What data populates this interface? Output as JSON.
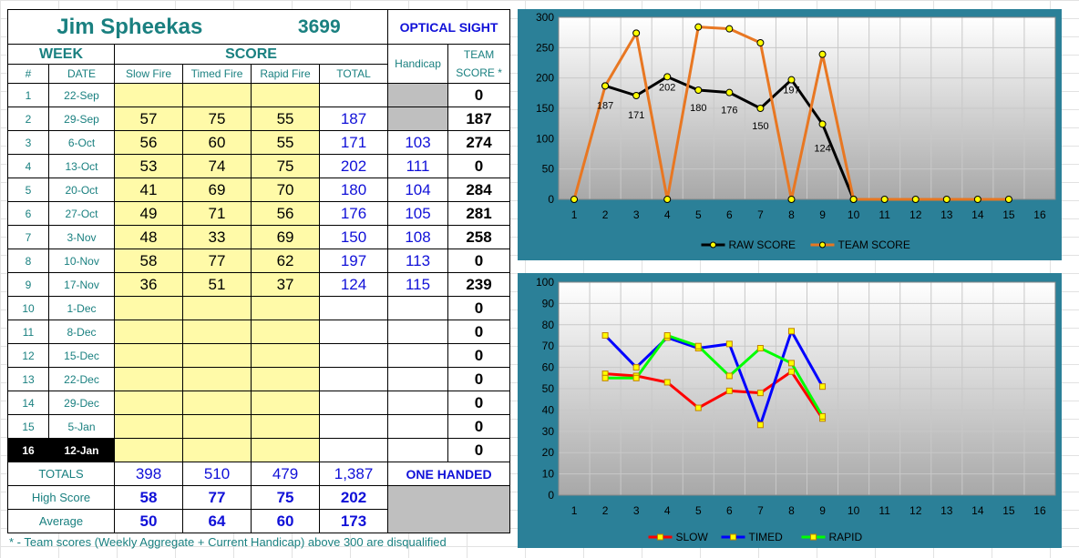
{
  "sheet": {
    "name": "Jim Spheekas",
    "id": "3699",
    "sight": "OPTICAL SIGHT",
    "headers": {
      "week": "WEEK",
      "score": "SCORE",
      "num": "#",
      "date": "DATE",
      "slow": "Slow Fire",
      "timed": "Timed Fire",
      "rapid": "Rapid Fire",
      "total": "TOTAL",
      "handicap": "Handicap",
      "team1": "TEAM",
      "team2": "SCORE *"
    },
    "rows": [
      {
        "num": "1",
        "date": "22-Sep",
        "slow": "",
        "timed": "",
        "rapid": "",
        "total": "",
        "handicap": "",
        "team": "0"
      },
      {
        "num": "2",
        "date": "29-Sep",
        "slow": "57",
        "timed": "75",
        "rapid": "55",
        "total": "187",
        "handicap": "",
        "team": "187"
      },
      {
        "num": "3",
        "date": "6-Oct",
        "slow": "56",
        "timed": "60",
        "rapid": "55",
        "total": "171",
        "handicap": "103",
        "team": "274"
      },
      {
        "num": "4",
        "date": "13-Oct",
        "slow": "53",
        "timed": "74",
        "rapid": "75",
        "total": "202",
        "handicap": "111",
        "team": "0"
      },
      {
        "num": "5",
        "date": "20-Oct",
        "slow": "41",
        "timed": "69",
        "rapid": "70",
        "total": "180",
        "handicap": "104",
        "team": "284"
      },
      {
        "num": "6",
        "date": "27-Oct",
        "slow": "49",
        "timed": "71",
        "rapid": "56",
        "total": "176",
        "handicap": "105",
        "team": "281"
      },
      {
        "num": "7",
        "date": "3-Nov",
        "slow": "48",
        "timed": "33",
        "rapid": "69",
        "total": "150",
        "handicap": "108",
        "team": "258"
      },
      {
        "num": "8",
        "date": "10-Nov",
        "slow": "58",
        "timed": "77",
        "rapid": "62",
        "total": "197",
        "handicap": "113",
        "team": "0"
      },
      {
        "num": "9",
        "date": "17-Nov",
        "slow": "36",
        "timed": "51",
        "rapid": "37",
        "total": "124",
        "handicap": "115",
        "team": "239"
      },
      {
        "num": "10",
        "date": "1-Dec",
        "slow": "",
        "timed": "",
        "rapid": "",
        "total": "",
        "handicap": "",
        "team": "0"
      },
      {
        "num": "11",
        "date": "8-Dec",
        "slow": "",
        "timed": "",
        "rapid": "",
        "total": "",
        "handicap": "",
        "team": "0"
      },
      {
        "num": "12",
        "date": "15-Dec",
        "slow": "",
        "timed": "",
        "rapid": "",
        "total": "",
        "handicap": "",
        "team": "0"
      },
      {
        "num": "13",
        "date": "22-Dec",
        "slow": "",
        "timed": "",
        "rapid": "",
        "total": "",
        "handicap": "",
        "team": "0"
      },
      {
        "num": "14",
        "date": "29-Dec",
        "slow": "",
        "timed": "",
        "rapid": "",
        "total": "",
        "handicap": "",
        "team": "0"
      },
      {
        "num": "15",
        "date": "5-Jan",
        "slow": "",
        "timed": "",
        "rapid": "",
        "total": "",
        "handicap": "",
        "team": "0"
      },
      {
        "num": "16",
        "date": "12-Jan",
        "slow": "",
        "timed": "",
        "rapid": "",
        "total": "",
        "handicap": "",
        "team": "0"
      }
    ],
    "totals": {
      "label": "TOTALS",
      "slow": "398",
      "timed": "510",
      "rapid": "479",
      "total": "1,387",
      "note": "ONE HANDED"
    },
    "high": {
      "label": "High Score",
      "slow": "58",
      "timed": "77",
      "rapid": "75",
      "total": "202"
    },
    "average": {
      "label": "Average",
      "slow": "50",
      "timed": "64",
      "rapid": "60",
      "total": "173"
    },
    "footnote": "* - Team scores (Weekly Aggregate + Current Handicap) above 300 are disqualified"
  },
  "colors": {
    "teal": "#1a8080",
    "blue": "#1010d8",
    "yellow_fill": "#fffaa8",
    "gray_fill": "#bfbfbf",
    "chart_frame": "#2b8098",
    "raw_line": "#000000",
    "team_line": "#e87722",
    "slow_line": "#ff0000",
    "timed_line": "#0000ff",
    "rapid_line": "#00ff00",
    "marker": "#ffff00"
  },
  "chart_data": [
    {
      "type": "line",
      "title": "",
      "x": [
        1,
        2,
        3,
        4,
        5,
        6,
        7,
        8,
        9,
        10,
        11,
        12,
        13,
        14,
        15,
        16
      ],
      "ylim": [
        0,
        300
      ],
      "yticks": [
        0,
        50,
        100,
        150,
        200,
        250,
        300
      ],
      "grid": true,
      "legend": "bottom",
      "series": [
        {
          "name": "RAW SCORE",
          "x": [
            2,
            3,
            4,
            5,
            6,
            7,
            8,
            9,
            10
          ],
          "values": [
            187,
            171,
            202,
            180,
            176,
            150,
            197,
            124,
            0
          ],
          "data_labels": [
            "187",
            "171",
            "202",
            "180",
            "176",
            "150",
            "197",
            "124",
            ""
          ],
          "color": "#000000"
        },
        {
          "name": "TEAM SCORE",
          "x": [
            1,
            2,
            3,
            4,
            5,
            6,
            7,
            8,
            9,
            10,
            11,
            12,
            13,
            14,
            15
          ],
          "values": [
            0,
            187,
            274,
            0,
            284,
            281,
            258,
            0,
            239,
            0,
            0,
            0,
            0,
            0,
            0
          ],
          "color": "#e87722"
        }
      ]
    },
    {
      "type": "line",
      "title": "",
      "x": [
        1,
        2,
        3,
        4,
        5,
        6,
        7,
        8,
        9,
        10,
        11,
        12,
        13,
        14,
        15,
        16
      ],
      "ylim": [
        0,
        100
      ],
      "yticks": [
        0,
        10,
        20,
        30,
        40,
        50,
        60,
        70,
        80,
        90,
        100
      ],
      "grid": true,
      "legend": "bottom",
      "series": [
        {
          "name": "SLOW",
          "x": [
            2,
            3,
            4,
            5,
            6,
            7,
            8,
            9
          ],
          "values": [
            57,
            56,
            53,
            41,
            49,
            48,
            58,
            36
          ],
          "color": "#ff0000"
        },
        {
          "name": "TIMED",
          "x": [
            2,
            3,
            4,
            5,
            6,
            7,
            8,
            9
          ],
          "values": [
            75,
            60,
            74,
            69,
            71,
            33,
            77,
            51
          ],
          "color": "#0000ff"
        },
        {
          "name": "RAPID",
          "x": [
            2,
            3,
            4,
            5,
            6,
            7,
            8,
            9
          ],
          "values": [
            55,
            55,
            75,
            70,
            56,
            69,
            62,
            37
          ],
          "color": "#00ff00"
        }
      ]
    }
  ]
}
